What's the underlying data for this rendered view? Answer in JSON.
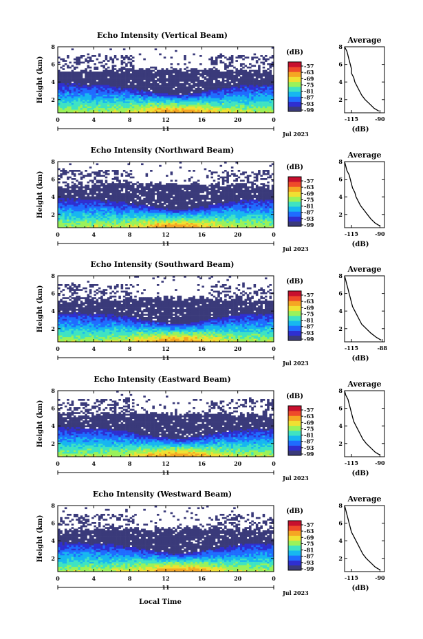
{
  "figure": {
    "x_label": "Local Time",
    "day_label": "11",
    "month_year": "Jul 2023"
  },
  "colorbar": {
    "unit": "(dB)",
    "ticks": [
      "-57",
      "-63",
      "-69",
      "-75",
      "-81",
      "-87",
      "-93",
      "-99"
    ],
    "colors": [
      "#3a3a7a",
      "#2f2fd0",
      "#1f6cff",
      "#17b7f0",
      "#3fe3c2",
      "#9af25a",
      "#f0e032",
      "#f5a623",
      "#ef4a2a",
      "#c8102e"
    ]
  },
  "chart_data": [
    {
      "type": "heatmap",
      "title": "Echo Intensity (Vertical Beam)",
      "xlabel": "Local Time",
      "ylabel": "Height (km)",
      "xlim": [
        0,
        24
      ],
      "xticks": [
        "0",
        "4",
        "8",
        "12",
        "16",
        "20",
        "0"
      ],
      "ylim": [
        0.5,
        8
      ],
      "yticks": [
        "2",
        "4",
        "6",
        "8"
      ],
      "clim": [
        -99,
        -57
      ],
      "profile": {
        "title": "Average",
        "xlabel": "(dB)",
        "xticks": [
          "-115",
          "-90"
        ],
        "yticks": [
          "2",
          "4",
          "6",
          "8"
        ],
        "height_km": [
          8.0,
          7.5,
          7.0,
          6.5,
          6.0,
          5.5,
          5.0,
          4.5,
          4.0,
          3.5,
          3.0,
          2.5,
          2.0,
          1.5,
          1.0,
          0.7
        ],
        "db": [
          -121,
          -119,
          -118,
          -117,
          -116,
          -115,
          -115,
          -113,
          -112,
          -110,
          -108,
          -106,
          -103,
          -99,
          -95,
          -91
        ]
      }
    },
    {
      "type": "heatmap",
      "title": "Echo Intensity (Northward Beam)",
      "xlabel": "Local Time",
      "ylabel": "Height (km)",
      "xlim": [
        0,
        24
      ],
      "xticks": [
        "0",
        "4",
        "8",
        "12",
        "16",
        "20",
        "0"
      ],
      "ylim": [
        0.5,
        8
      ],
      "yticks": [
        "2",
        "4",
        "6",
        "8"
      ],
      "clim": [
        -99,
        -57
      ],
      "profile": {
        "title": "Average",
        "xlabel": "(dB)",
        "xticks": [
          "-115",
          "-90"
        ],
        "yticks": [
          "2",
          "4",
          "6",
          "8"
        ],
        "height_km": [
          8.0,
          7.5,
          7.0,
          6.5,
          6.0,
          5.5,
          5.0,
          4.5,
          4.0,
          3.5,
          3.0,
          2.5,
          2.0,
          1.5,
          1.0,
          0.7
        ],
        "db": [
          -121,
          -120,
          -119,
          -117,
          -116,
          -115,
          -114,
          -112,
          -111,
          -109,
          -107,
          -104,
          -101,
          -98,
          -94,
          -90
        ]
      }
    },
    {
      "type": "heatmap",
      "title": "Echo Intensity (Southward Beam)",
      "xlabel": "Local Time",
      "ylabel": "Height (km)",
      "xlim": [
        0,
        24
      ],
      "xticks": [
        "0",
        "4",
        "8",
        "12",
        "16",
        "20",
        "0"
      ],
      "ylim": [
        0.5,
        8
      ],
      "yticks": [
        "2",
        "4",
        "6",
        "8"
      ],
      "clim": [
        -99,
        -57
      ],
      "profile": {
        "title": "Average",
        "xlabel": "(dB)",
        "xticks": [
          "-115",
          "-88"
        ],
        "yticks": [
          "2",
          "4",
          "6",
          "8"
        ],
        "height_km": [
          8.0,
          7.5,
          7.0,
          6.5,
          6.0,
          5.5,
          5.0,
          4.5,
          4.0,
          3.5,
          3.0,
          2.5,
          2.0,
          1.5,
          1.0,
          0.7
        ],
        "db": [
          -121,
          -120,
          -119,
          -118,
          -117,
          -116,
          -115,
          -114,
          -112,
          -110,
          -108,
          -106,
          -102,
          -98,
          -93,
          -89
        ]
      }
    },
    {
      "type": "heatmap",
      "title": "Echo Intensity (Eastward Beam)",
      "xlabel": "Local Time",
      "ylabel": "Height (km)",
      "xlim": [
        0,
        24
      ],
      "xticks": [
        "0",
        "4",
        "8",
        "12",
        "16",
        "20",
        "0"
      ],
      "ylim": [
        0.5,
        8
      ],
      "yticks": [
        "2",
        "4",
        "6",
        "8"
      ],
      "clim": [
        -99,
        -57
      ],
      "profile": {
        "title": "Average",
        "xlabel": "(dB)",
        "xticks": [
          "-115",
          "-90"
        ],
        "yticks": [
          "2",
          "4",
          "6",
          "8"
        ],
        "height_km": [
          8.0,
          7.5,
          7.0,
          6.5,
          6.0,
          5.5,
          5.0,
          4.5,
          4.0,
          3.5,
          3.0,
          2.5,
          2.0,
          1.5,
          1.0,
          0.7
        ],
        "db": [
          -121,
          -120,
          -118,
          -117,
          -116,
          -115,
          -114,
          -113,
          -111,
          -109,
          -107,
          -105,
          -102,
          -98,
          -94,
          -90
        ]
      }
    },
    {
      "type": "heatmap",
      "title": "Echo Intensity (Westward Beam)",
      "xlabel": "Local Time",
      "ylabel": "Height (km)",
      "xlim": [
        0,
        24
      ],
      "xticks": [
        "0",
        "4",
        "8",
        "12",
        "16",
        "20",
        "0"
      ],
      "ylim": [
        0.5,
        8
      ],
      "yticks": [
        "2",
        "4",
        "6",
        "8"
      ],
      "clim": [
        -99,
        -57
      ],
      "profile": {
        "title": "Average",
        "xlabel": "(dB)",
        "xticks": [
          "-115",
          "-90"
        ],
        "yticks": [
          "2",
          "4",
          "6",
          "8"
        ],
        "height_km": [
          8.0,
          7.5,
          7.0,
          6.5,
          6.0,
          5.5,
          5.0,
          4.5,
          4.0,
          3.5,
          3.0,
          2.5,
          2.0,
          1.5,
          1.0,
          0.7
        ],
        "db": [
          -121,
          -120,
          -119,
          -118,
          -117,
          -116,
          -115,
          -113,
          -111,
          -109,
          -107,
          -105,
          -102,
          -98,
          -94,
          -90
        ]
      }
    }
  ]
}
